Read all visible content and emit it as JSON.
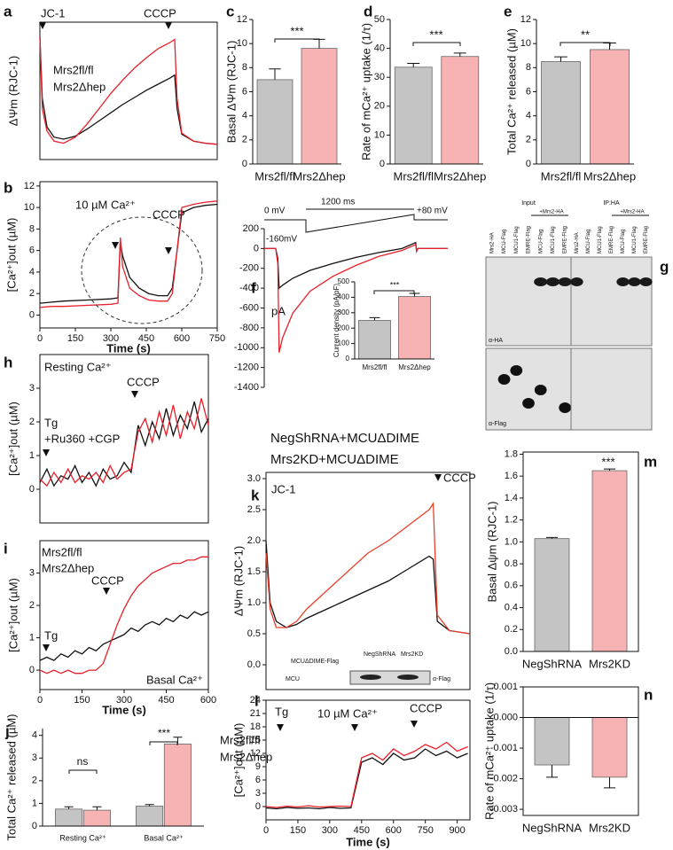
{
  "chart_data": [
    {
      "type": "line",
      "panel": "a",
      "ylabel": "ΔΨm (RJC-1)",
      "xlim": [
        0,
        750
      ],
      "ylim": [
        0,
        13.5
      ],
      "x": [
        0,
        10,
        30,
        60,
        100,
        150,
        200,
        250,
        300,
        350,
        400,
        450,
        500,
        550,
        570,
        580,
        600,
        650,
        700,
        750
      ],
      "series": [
        {
          "name": "Mrs2fl/fl",
          "color": "#111111",
          "values": [
            12,
            6,
            3.2,
            2.2,
            2.0,
            2.3,
            3.0,
            3.8,
            4.6,
            5.4,
            6.1,
            6.8,
            7.4,
            8.0,
            8.3,
            5.0,
            2.5,
            1.8,
            1.6,
            1.5
          ]
        },
        {
          "name": "Mrs2Δhep",
          "color": "#e8202a",
          "values": [
            12,
            5,
            2.8,
            1.8,
            1.6,
            2.2,
            3.5,
            5.0,
            6.5,
            7.8,
            9.0,
            10.0,
            10.9,
            11.5,
            11.8,
            6.0,
            2.6,
            1.8,
            1.6,
            1.5
          ]
        }
      ],
      "annotations": [
        "JC-1",
        "CCCP"
      ]
    },
    {
      "type": "line",
      "panel": "b",
      "ylabel": "[Ca²⁺]out (µM)",
      "xlabel": "Time (s)",
      "xlim": [
        0,
        750
      ],
      "ylim": [
        -1.2,
        12.4
      ],
      "xticks": [
        0,
        150,
        300,
        450,
        600,
        750
      ],
      "yticks": [
        0,
        2,
        4,
        6,
        8,
        10,
        12
      ],
      "x": [
        0,
        50,
        100,
        200,
        300,
        330,
        340,
        350,
        380,
        420,
        460,
        500,
        540,
        560,
        580,
        600,
        650,
        700,
        750
      ],
      "series": [
        {
          "color": "#111111",
          "values": [
            1.1,
            1.2,
            1.3,
            1.4,
            1.5,
            1.6,
            6.8,
            5.5,
            3.5,
            2.5,
            2.0,
            1.8,
            1.8,
            2.5,
            6.0,
            9.5,
            10.0,
            10.2,
            10.3
          ]
        },
        {
          "color": "#e8202a",
          "values": [
            0.7,
            0.8,
            0.8,
            0.9,
            1.0,
            1.1,
            7.2,
            4.5,
            2.5,
            1.8,
            1.4,
            1.3,
            1.3,
            2.0,
            6.0,
            10.0,
            10.3,
            10.5,
            10.6
          ]
        }
      ],
      "annotations": [
        "10 µM Ca²⁺",
        "CCCP"
      ]
    },
    {
      "type": "bar",
      "panel": "c",
      "ylabel": "Basal ΔΨm (RJC-1)",
      "categories": [
        "Mrs2fl/fl",
        "Mrs2Δhep"
      ],
      "category_colors": [
        "#111111",
        "#e8202a"
      ],
      "values": [
        7.0,
        9.6
      ],
      "errors": [
        0.9,
        0.75
      ],
      "colors": [
        "#c4c4c4",
        "#f7b3b3"
      ],
      "ylim": [
        0,
        12
      ],
      "yticks": [
        0,
        2,
        4,
        6,
        8,
        10,
        12
      ],
      "annotations": [
        "***"
      ]
    },
    {
      "type": "bar",
      "panel": "d",
      "ylabel": "Rate of mCa²⁺ uptake (1/τ)",
      "categories": [
        "Mrs2fl/fl",
        "Mrs2Δhep"
      ],
      "category_colors": [
        "#111111",
        "#e8202a"
      ],
      "values": [
        33.5,
        37.2
      ],
      "errors": [
        1.3,
        1.2
      ],
      "colors": [
        "#c4c4c4",
        "#f7b3b3"
      ],
      "ylim": [
        0,
        50
      ],
      "yticks": [
        0,
        10,
        20,
        30,
        40,
        50
      ],
      "annotations": [
        "***"
      ]
    },
    {
      "type": "bar",
      "panel": "e",
      "ylabel": "Total Ca²⁺ released (µM)",
      "categories": [
        "Mrs2fl/fl",
        "Mrs2Δhep"
      ],
      "category_colors": [
        "#111111",
        "#e8202a"
      ],
      "values": [
        8.5,
        9.5
      ],
      "errors": [
        0.4,
        0.55
      ],
      "colors": [
        "#c4c4c4",
        "#f7b3b3"
      ],
      "ylim": [
        0,
        12
      ],
      "yticks": [
        0,
        2,
        4,
        6,
        8,
        10,
        12
      ],
      "annotations": [
        "**"
      ]
    },
    {
      "type": "line",
      "panel": "f",
      "ylabel": "pA",
      "xlim": [
        0,
        1600
      ],
      "ylim": [
        -1400,
        200
      ],
      "yticks": [
        -1400,
        -1200,
        -1000,
        -800,
        -600,
        -400,
        -200,
        0,
        200
      ],
      "x": [
        0,
        100,
        118,
        130,
        160,
        250,
        400,
        600,
        800,
        1000,
        1200,
        1320,
        1328,
        1340,
        1400,
        1600
      ],
      "series": [
        {
          "color": "#111111",
          "values": [
            0,
            0,
            -100,
            -400,
            -370,
            -300,
            -220,
            -150,
            -90,
            -40,
            0,
            60,
            -20,
            0,
            0,
            0
          ]
        },
        {
          "color": "#e8202a",
          "values": [
            0,
            0,
            -150,
            -1050,
            -900,
            -650,
            -430,
            -280,
            -170,
            -80,
            -20,
            40,
            -30,
            0,
            0,
            0
          ]
        }
      ],
      "annotations": [
        "0 mV",
        "1200 ms",
        "+80 mV",
        "-160mV"
      ],
      "inset": {
        "type": "bar",
        "ylabel": "Current density (pA/pF)",
        "categories": [
          "Mrs2fl/fl",
          "Mrs2Δhep"
        ],
        "category_colors": [
          "#111111",
          "#e8202a"
        ],
        "values": [
          250,
          405
        ],
        "errors": [
          18,
          20
        ],
        "colors": [
          "#c4c4c4",
          "#f7b3b3"
        ],
        "ylim": [
          0,
          500
        ],
        "yticks": [
          0,
          100,
          200,
          300,
          400,
          500
        ],
        "annotations": [
          "***"
        ]
      }
    },
    {
      "type": "line",
      "panel": "h",
      "ylabel": "[Ca²⁺]out (µM)",
      "xlim": [
        0,
        600
      ],
      "ylim": [
        -1,
        4
      ],
      "yticks": [
        0,
        1,
        2,
        3
      ],
      "x": [
        0,
        25,
        50,
        75,
        100,
        125,
        150,
        175,
        200,
        225,
        250,
        275,
        300,
        325,
        350,
        375,
        400,
        425,
        450,
        475,
        500,
        525,
        550,
        575,
        600
      ],
      "series": [
        {
          "color": "#111111",
          "values": [
            0.2,
            0.6,
            0.1,
            0.4,
            0.3,
            0.7,
            0.2,
            0.5,
            0.1,
            0.6,
            0.3,
            0.4,
            0.8,
            0.5,
            1.9,
            1.3,
            2.0,
            1.5,
            2.4,
            1.6,
            2.2,
            1.8,
            2.6,
            1.7,
            2.1
          ]
        },
        {
          "color": "#e8202a",
          "values": [
            0.3,
            0.1,
            0.5,
            0.2,
            0.6,
            0.2,
            0.4,
            0.3,
            0.5,
            0.2,
            0.7,
            0.3,
            0.5,
            0.6,
            1.7,
            2.1,
            1.4,
            2.3,
            1.6,
            2.5,
            1.5,
            2.3,
            1.8,
            2.7,
            1.9
          ]
        }
      ],
      "annotations": [
        "Resting Ca²⁺",
        "Tg",
        "+Ru360 +CGP",
        "CCCP"
      ]
    },
    {
      "type": "line",
      "panel": "i",
      "ylabel": "[Ca²⁺]out (µM)",
      "xlabel": "Time (s)",
      "xlim": [
        0,
        600
      ],
      "ylim": [
        -0.6,
        4
      ],
      "yticks": [
        0,
        1,
        2,
        3
      ],
      "xticks": [
        0,
        150,
        300,
        450,
        600
      ],
      "x": [
        0,
        25,
        50,
        75,
        100,
        125,
        150,
        175,
        200,
        225,
        250,
        275,
        300,
        325,
        350,
        375,
        400,
        425,
        450,
        475,
        500,
        525,
        550,
        575,
        600
      ],
      "series": [
        {
          "name": "Mrs2fl/fl",
          "color": "#111111",
          "values": [
            0.3,
            0.4,
            0.3,
            0.5,
            0.4,
            0.6,
            0.5,
            0.7,
            0.6,
            0.8,
            0.9,
            1.0,
            1.1,
            1.3,
            1.2,
            1.4,
            1.5,
            1.4,
            1.6,
            1.5,
            1.7,
            1.6,
            1.8,
            1.7,
            1.8
          ]
        },
        {
          "name": "Mrs2Δhep",
          "color": "#e8202a",
          "values": [
            0.0,
            -0.1,
            0.0,
            -0.1,
            0.0,
            -0.1,
            -0.1,
            0.0,
            0.0,
            0.2,
            0.8,
            1.4,
            1.9,
            2.3,
            2.6,
            2.8,
            3.0,
            3.1,
            3.2,
            3.3,
            3.3,
            3.4,
            3.4,
            3.5,
            3.5
          ]
        }
      ],
      "annotations": [
        "CCCP",
        "Tg",
        "Basal Ca²⁺"
      ]
    },
    {
      "type": "bar",
      "panel": "j",
      "ylabel": "Total Ca²⁺ released (µM)",
      "categories": [
        "Resting Ca²⁺",
        "Basal Ca²⁺"
      ],
      "series": [
        {
          "name": "Mrs2fl/fl",
          "color": "#c4c4c4",
          "values": [
            0.75,
            0.88
          ],
          "errors": [
            0.1,
            0.07
          ]
        },
        {
          "name": "Mrs2Δhep",
          "color": "#f7b3b3",
          "values": [
            0.7,
            3.62
          ],
          "errors": [
            0.15,
            0.3
          ]
        }
      ],
      "legend_colors": [
        "#111111",
        "#e8202a"
      ],
      "ylim": [
        0,
        4.3
      ],
      "yticks": [
        0,
        1,
        2,
        3,
        4
      ],
      "annotations": [
        "ns",
        "***"
      ]
    },
    {
      "type": "line",
      "panel": "k",
      "ylabel": "ΔΨm (RJC-1)",
      "xlim": [
        0,
        1000
      ],
      "ylim": [
        -0.4,
        3.1
      ],
      "yticks": [
        {
          "value": 0,
          "label": "0.0"
        },
        0.5,
        {
          "value": 1,
          "label": "1.0"
        },
        1.5,
        {
          "value": 2,
          "label": "2.0"
        },
        2.5,
        {
          "value": 3,
          "label": "3.0"
        }
      ],
      "x": [
        0,
        20,
        50,
        100,
        150,
        200,
        300,
        400,
        500,
        600,
        700,
        800,
        820,
        840,
        900,
        1000
      ],
      "series": [
        {
          "name": "NegShRNA+MCUΔDIME",
          "color": "#111111",
          "values": [
            2.0,
            1.0,
            0.7,
            0.6,
            0.65,
            0.75,
            0.9,
            1.05,
            1.2,
            1.35,
            1.55,
            1.75,
            1.7,
            0.7,
            0.55,
            0.5
          ]
        },
        {
          "name": "Mrs2KD+MCUΔDIME",
          "color": "#e8402a",
          "values": [
            1.8,
            0.9,
            0.6,
            0.6,
            0.7,
            0.9,
            1.2,
            1.5,
            1.8,
            2.0,
            2.25,
            2.5,
            2.6,
            0.8,
            0.55,
            0.5
          ]
        }
      ],
      "annotations": [
        "JC-1",
        "CCCP",
        "MCUΔDIME-Flag",
        "NegShRNA",
        "Mrs2KD",
        "MCU",
        "α-Flag"
      ]
    },
    {
      "type": "line",
      "panel": "l",
      "ylabel": "[Ca²⁺]out (µM)",
      "xlabel": "Time (s)",
      "xlim": [
        0,
        960
      ],
      "ylim": [
        -3,
        24
      ],
      "yticks": [
        0,
        3,
        6,
        9,
        12,
        15,
        18,
        21,
        24
      ],
      "xticks": [
        0,
        150,
        300,
        450,
        600,
        750,
        900
      ],
      "x": [
        0,
        50,
        100,
        150,
        200,
        250,
        300,
        350,
        400,
        450,
        500,
        550,
        600,
        650,
        700,
        750,
        800,
        850,
        900,
        950
      ],
      "series": [
        {
          "color": "#111111",
          "values": [
            -0.3,
            -0.5,
            -0.2,
            -0.4,
            -0.3,
            -0.5,
            -0.2,
            -0.4,
            -0.3,
            10,
            11,
            9.5,
            12,
            10.5,
            11,
            13,
            11.5,
            12.5,
            11,
            12
          ]
        },
        {
          "color": "#e8202a",
          "values": [
            0,
            -0.2,
            0.1,
            -0.1,
            0.2,
            -0.1,
            0,
            0.1,
            0,
            11,
            12,
            10.5,
            13,
            11.5,
            12.5,
            14,
            13,
            14.5,
            12.5,
            13.5
          ]
        }
      ],
      "annotations": [
        "Tg",
        "10 µM Ca²⁺",
        "CCCP"
      ]
    },
    {
      "type": "bar",
      "panel": "m",
      "ylabel": "Basal Δψm (RJC-1)",
      "categories": [
        "NegShRNA",
        "Mrs2KD"
      ],
      "category_colors": [
        "#111111",
        "#e8202a"
      ],
      "values": [
        1.03,
        1.65
      ],
      "errors": [
        0.01,
        0.015
      ],
      "colors": [
        "#c4c4c4",
        "#f7b3b3"
      ],
      "ylim": [
        0,
        1.82
      ],
      "yticks": [
        {
          "value": 0,
          "label": "0.0"
        },
        0.2,
        0.4,
        0.6,
        0.8,
        {
          "value": 1,
          "label": "1.0"
        },
        1.2,
        1.4,
        1.6,
        1.8
      ],
      "annotations": [
        "***"
      ]
    },
    {
      "type": "bar",
      "panel": "n",
      "ylabel": "Rate of mCa²⁺ uptake (1/τ)",
      "categories": [
        "NegShRNA",
        "Mrs2KD"
      ],
      "category_colors": [
        "#111111",
        "#e8202a"
      ],
      "values": [
        -0.00155,
        -0.00195
      ],
      "errors": [
        0.0004,
        0.00035
      ],
      "colors": [
        "#c4c4c4",
        "#f7b3b3"
      ],
      "ylim": [
        -0.0032,
        0.001
      ],
      "yticks": [
        -0.003,
        -0.002,
        -0.001,
        {
          "value": 0,
          "label": "0.000"
        },
        0.001
      ],
      "annotations": []
    }
  ],
  "blot": {
    "panel": "g",
    "groups": [
      "Input",
      "IP:HA"
    ],
    "condition": "+Mrs2-HA",
    "lanes": [
      "Mrs2-HA",
      "MCU-Flag",
      "MCU1-Flag",
      "EMRE-Flag",
      "MCU-Flag",
      "MCU1-Flag",
      "EMRE-Flag"
    ],
    "antibodies": [
      "α-HA",
      "α-Flag"
    ]
  }
}
